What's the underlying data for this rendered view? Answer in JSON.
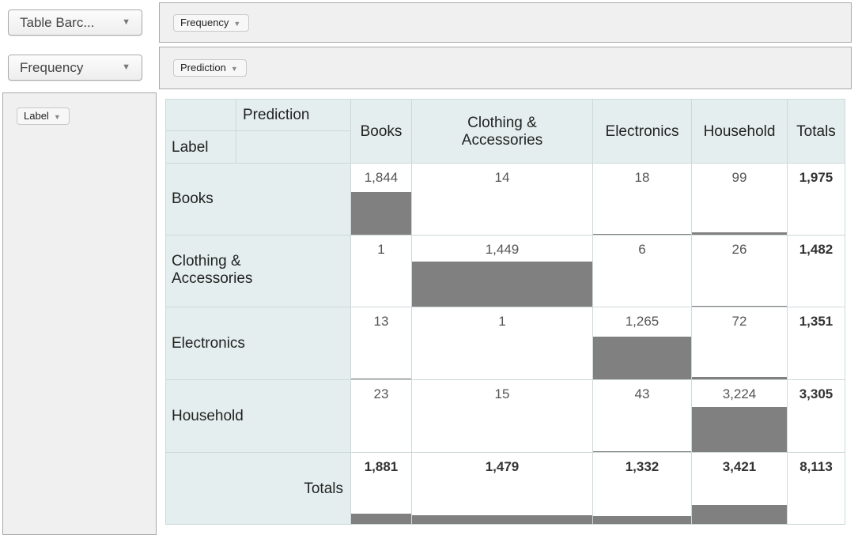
{
  "controls": {
    "renderer": "Table Barc...",
    "aggregator": "Frequency"
  },
  "areas": {
    "vals_pill": "Frequency",
    "cols_pill": "Prediction",
    "rows_pill": "Label"
  },
  "table": {
    "col_attr": "Prediction",
    "row_attr": "Label",
    "col_headers": [
      "Books",
      "Clothing &\nAccessories",
      "Electronics",
      "Household"
    ],
    "totals_label": "Totals",
    "rows": [
      {
        "label": "Books",
        "values": [
          "1,844",
          "14",
          "18",
          "99"
        ],
        "total": "1,975"
      },
      {
        "label": "Clothing & Accessories",
        "values": [
          "1",
          "1,449",
          "6",
          "26"
        ],
        "total": "1,482"
      },
      {
        "label": "Electronics",
        "values": [
          "13",
          "1",
          "1,265",
          "72"
        ],
        "total": "1,351"
      },
      {
        "label": "Household",
        "values": [
          "23",
          "15",
          "43",
          "3,224"
        ],
        "total": "3,305"
      }
    ],
    "col_totals": [
      "1,881",
      "1,479",
      "1,332",
      "3,421"
    ],
    "grand_total": "8,113"
  },
  "chart_data": {
    "type": "table",
    "row_attr": "Label",
    "col_attr": "Prediction",
    "categories": [
      "Books",
      "Clothing & Accessories",
      "Electronics",
      "Household"
    ],
    "matrix": [
      [
        1844,
        14,
        18,
        99
      ],
      [
        1,
        1449,
        6,
        26
      ],
      [
        13,
        1,
        1265,
        72
      ],
      [
        23,
        15,
        43,
        3224
      ]
    ],
    "row_totals": [
      1975,
      1482,
      1351,
      3305
    ],
    "col_totals": [
      1881,
      1479,
      1332,
      3421
    ],
    "grand_total": 8113,
    "bar_color": "#808080"
  }
}
